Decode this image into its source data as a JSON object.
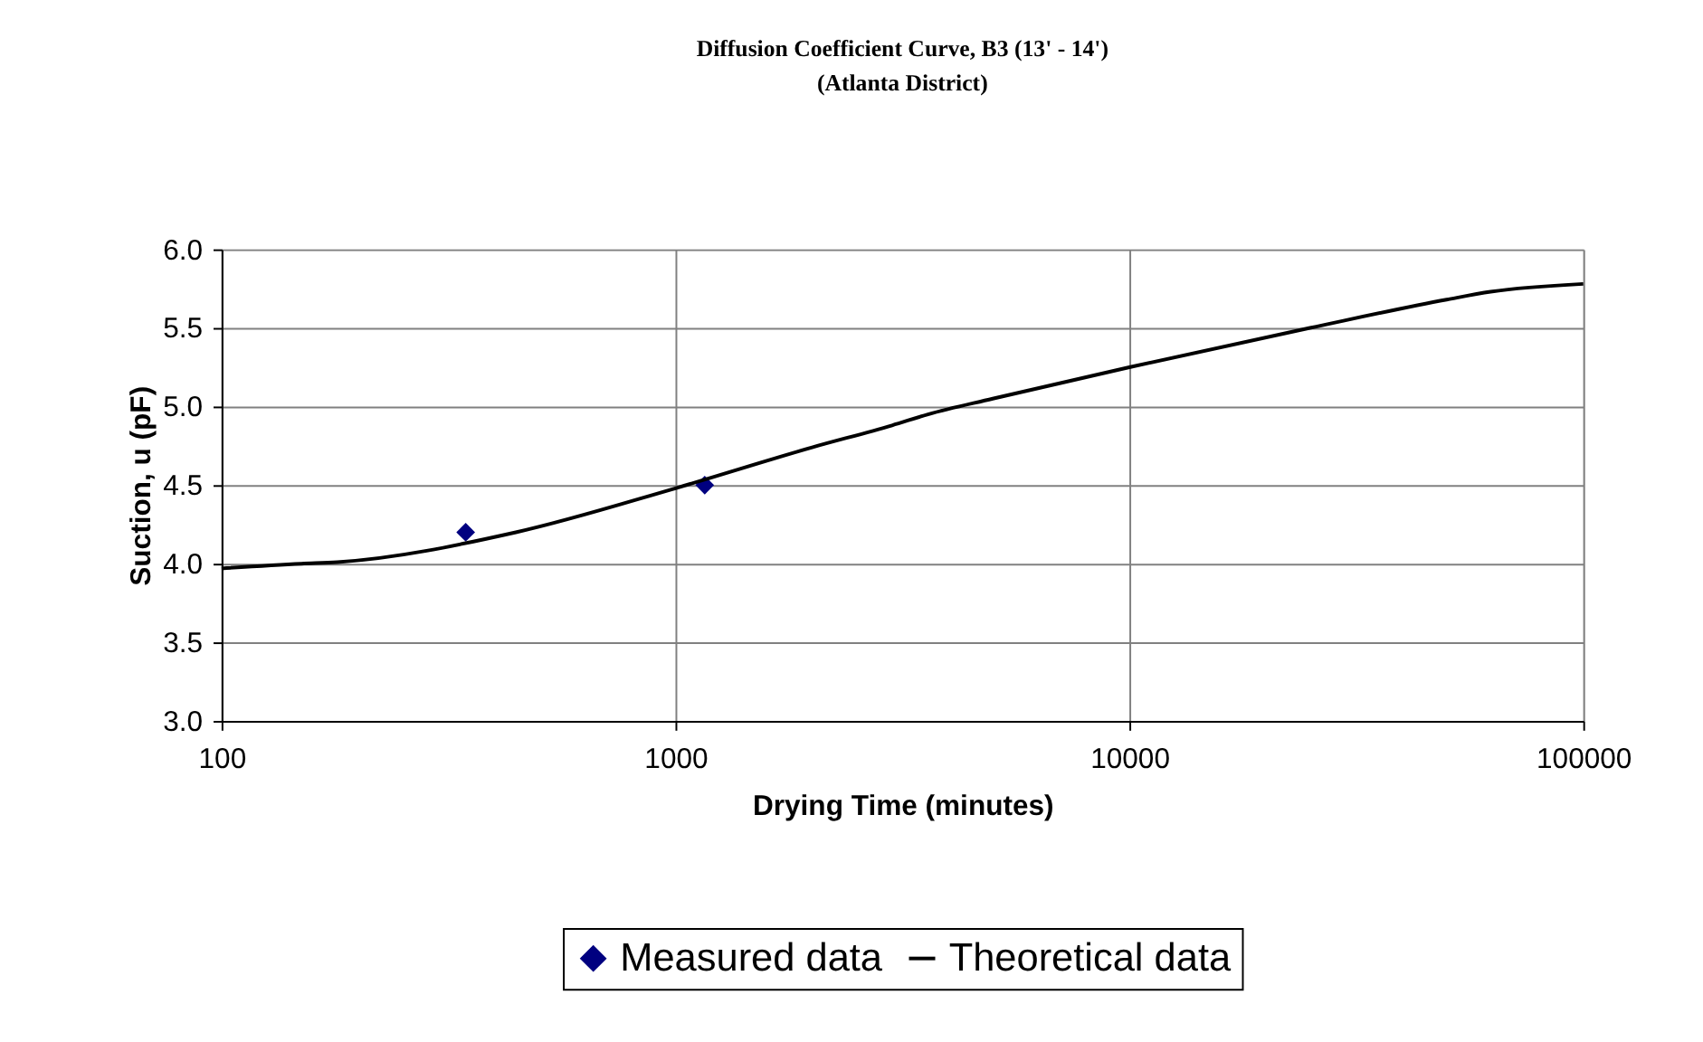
{
  "chart_data": {
    "type": "line",
    "title": "Diffusion Coefficient Curve, B3 (13' - 14')",
    "subtitle": "(Atlanta District)",
    "xlabel": "Drying Time (minutes)",
    "ylabel": "Suction, u (pF)",
    "log": "x",
    "xlim": [
      100,
      100000
    ],
    "xticks": [
      100,
      1000,
      10000,
      100000
    ],
    "ylim": [
      3.0,
      6.0
    ],
    "yticks": [
      {
        "value": 3,
        "label": "3.0"
      },
      {
        "value": 3.5,
        "label": "3.5"
      },
      {
        "value": 4,
        "label": "4.0"
      },
      {
        "value": 4.5,
        "label": "4.5"
      },
      {
        "value": 5,
        "label": "5.0"
      },
      {
        "value": 5.5,
        "label": "5.5"
      },
      {
        "value": 6,
        "label": "6.0"
      }
    ],
    "grid": true,
    "legend": "bottom",
    "series": [
      {
        "name": "Measured data",
        "type": "scatter",
        "marker": "diamond",
        "color": "#000080",
        "x": [
          345,
          1160
        ],
        "values": [
          4.2,
          4.5
        ]
      },
      {
        "name": "Theoretical data",
        "type": "line",
        "marker": "none",
        "line_style": "solid",
        "color": "#000000",
        "x": [
          100,
          150,
          180,
          445,
          1000,
          2000,
          3000,
          3600,
          5000,
          10000,
          25000,
          50000,
          62500,
          100000
        ],
        "values": [
          3.97,
          4.0,
          4.01,
          4.2,
          4.48,
          4.74,
          4.88,
          4.95,
          5.05,
          5.25,
          5.5,
          5.68,
          5.73,
          5.78
        ]
      }
    ]
  }
}
